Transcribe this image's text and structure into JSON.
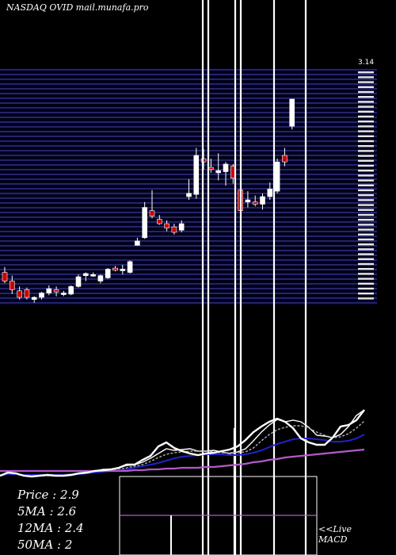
{
  "header": {
    "title": "NASDAQ OVID mail.munafa.pro"
  },
  "stats": [
    {
      "label": "Price",
      "value": "2.9"
    },
    {
      "label": "5MA",
      "value": "2.6"
    },
    {
      "label": "12MA",
      "value": "2.4"
    },
    {
      "label": "50MA",
      "value": "2"
    }
  ],
  "live_label": "<<Live",
  "macd_label": "MACD",
  "top_tick_label": "3.14",
  "colors": {
    "background": "#000000",
    "grid": "#3a3a9c",
    "up": "#ffffff",
    "down": "#cc0000",
    "ma_blue": "#1f22c9",
    "ma_purple": "#b25ac8",
    "price_line": "#ffffff"
  },
  "chart_data": {
    "type": "candlestick",
    "symbol": "OVID",
    "exchange": "NASDAQ",
    "price_range": [
      1.05,
      3.14
    ],
    "candles": [
      {
        "o": 1.3,
        "h": 1.35,
        "l": 1.2,
        "c": 1.22
      },
      {
        "o": 1.22,
        "h": 1.27,
        "l": 1.1,
        "c": 1.14
      },
      {
        "o": 1.13,
        "h": 1.17,
        "l": 1.05,
        "c": 1.07
      },
      {
        "o": 1.14,
        "h": 1.16,
        "l": 1.05,
        "c": 1.07
      },
      {
        "o": 1.05,
        "h": 1.08,
        "l": 1.02,
        "c": 1.07
      },
      {
        "o": 1.07,
        "h": 1.12,
        "l": 1.05,
        "c": 1.11
      },
      {
        "o": 1.11,
        "h": 1.18,
        "l": 1.09,
        "c": 1.15
      },
      {
        "o": 1.14,
        "h": 1.17,
        "l": 1.08,
        "c": 1.12
      },
      {
        "o": 1.1,
        "h": 1.13,
        "l": 1.08,
        "c": 1.11
      },
      {
        "o": 1.1,
        "h": 1.18,
        "l": 1.09,
        "c": 1.17
      },
      {
        "o": 1.17,
        "h": 1.28,
        "l": 1.16,
        "c": 1.26
      },
      {
        "o": 1.27,
        "h": 1.3,
        "l": 1.22,
        "c": 1.29
      },
      {
        "o": 1.28,
        "h": 1.3,
        "l": 1.26,
        "c": 1.28
      },
      {
        "o": 1.22,
        "h": 1.28,
        "l": 1.2,
        "c": 1.27
      },
      {
        "o": 1.25,
        "h": 1.34,
        "l": 1.24,
        "c": 1.33
      },
      {
        "o": 1.34,
        "h": 1.36,
        "l": 1.31,
        "c": 1.32
      },
      {
        "o": 1.33,
        "h": 1.37,
        "l": 1.28,
        "c": 1.33
      },
      {
        "o": 1.3,
        "h": 1.41,
        "l": 1.29,
        "c": 1.4
      },
      {
        "o": 1.55,
        "h": 1.62,
        "l": 1.55,
        "c": 1.59
      },
      {
        "o": 1.62,
        "h": 1.95,
        "l": 1.61,
        "c": 1.9
      },
      {
        "o": 1.87,
        "h": 2.06,
        "l": 1.8,
        "c": 1.82
      },
      {
        "o": 1.79,
        "h": 1.83,
        "l": 1.74,
        "c": 1.75
      },
      {
        "o": 1.75,
        "h": 1.78,
        "l": 1.68,
        "c": 1.71
      },
      {
        "o": 1.72,
        "h": 1.75,
        "l": 1.65,
        "c": 1.67
      },
      {
        "o": 1.69,
        "h": 1.78,
        "l": 1.67,
        "c": 1.75
      },
      {
        "o": 2.0,
        "h": 2.16,
        "l": 1.97,
        "c": 2.03
      },
      {
        "o": 2.02,
        "h": 2.45,
        "l": 1.98,
        "c": 2.38
      },
      {
        "o": 2.35,
        "h": 2.44,
        "l": 2.25,
        "c": 2.32
      },
      {
        "o": 2.27,
        "h": 2.35,
        "l": 2.22,
        "c": 2.25
      },
      {
        "o": 2.22,
        "h": 2.4,
        "l": 2.15,
        "c": 2.24
      },
      {
        "o": 2.23,
        "h": 2.32,
        "l": 2.1,
        "c": 2.3
      },
      {
        "o": 2.28,
        "h": 2.3,
        "l": 2.12,
        "c": 2.17
      },
      {
        "o": 2.06,
        "h": 2.15,
        "l": 1.84,
        "c": 1.87
      },
      {
        "o": 1.95,
        "h": 2.05,
        "l": 1.9,
        "c": 1.97
      },
      {
        "o": 1.95,
        "h": 2.01,
        "l": 1.91,
        "c": 1.93
      },
      {
        "o": 1.93,
        "h": 2.03,
        "l": 1.88,
        "c": 2.0
      },
      {
        "o": 2.0,
        "h": 2.13,
        "l": 1.97,
        "c": 2.07
      },
      {
        "o": 2.05,
        "h": 2.35,
        "l": 2.03,
        "c": 2.32
      },
      {
        "o": 2.38,
        "h": 2.45,
        "l": 2.28,
        "c": 2.32
      },
      {
        "o": 2.65,
        "h": 2.9,
        "l": 2.62,
        "c": 2.9
      }
    ],
    "ma_lines": [
      {
        "name": "fast",
        "color": "#ffffff",
        "y": [
          600,
          596,
          598,
          600,
          601,
          600,
          599,
          600,
          599,
          598,
          597,
          596,
          594,
          592,
          592,
          590,
          587,
          586,
          583,
          578,
          572,
          566,
          568,
          567,
          566,
          569,
          569,
          568,
          570,
          572,
          570,
          566,
          556,
          545,
          536,
          529,
          532,
          530,
          532,
          539,
          549,
          550,
          552,
          548,
          538,
          524,
          517
        ]
      },
      {
        "name": "medium",
        "color": "#b0b0b0",
        "y": [
          600,
          597,
          598,
          599,
          600,
          600,
          600,
          600,
          600,
          599,
          598,
          597,
          595,
          594,
          593,
          592,
          590,
          588,
          586,
          582,
          577,
          573,
          571,
          570,
          569,
          569,
          569,
          570,
          571,
          571,
          571,
          570,
          565,
          556,
          548,
          542,
          539,
          537,
          537,
          540,
          545,
          549,
          552,
          551,
          547,
          540,
          531
        ]
      },
      {
        "name": "slow",
        "color": "#1f22c9",
        "y": [
          600,
          598,
          598,
          599,
          599,
          599,
          599,
          599,
          599,
          598,
          598,
          597,
          596,
          595,
          594,
          593,
          592,
          590,
          588,
          586,
          584,
          581,
          578,
          576,
          575,
          574,
          573,
          573,
          573,
          574,
          574,
          573,
          571,
          568,
          564,
          560,
          557,
          554,
          553,
          553,
          554,
          555,
          557,
          557,
          556,
          553,
          548
        ]
      },
      {
        "name": "longest",
        "color": "#b25ac8",
        "y": [
          594,
          594,
          594,
          594,
          594,
          594,
          594,
          594,
          594,
          594,
          594,
          594,
          594,
          594,
          594,
          594,
          594,
          593,
          593,
          592,
          592,
          591,
          591,
          590,
          590,
          590,
          589,
          589,
          588,
          587,
          586,
          585,
          583,
          582,
          580,
          579,
          577,
          576,
          575,
          574,
          573,
          572,
          571,
          570,
          569,
          568,
          567
        ]
      }
    ]
  }
}
